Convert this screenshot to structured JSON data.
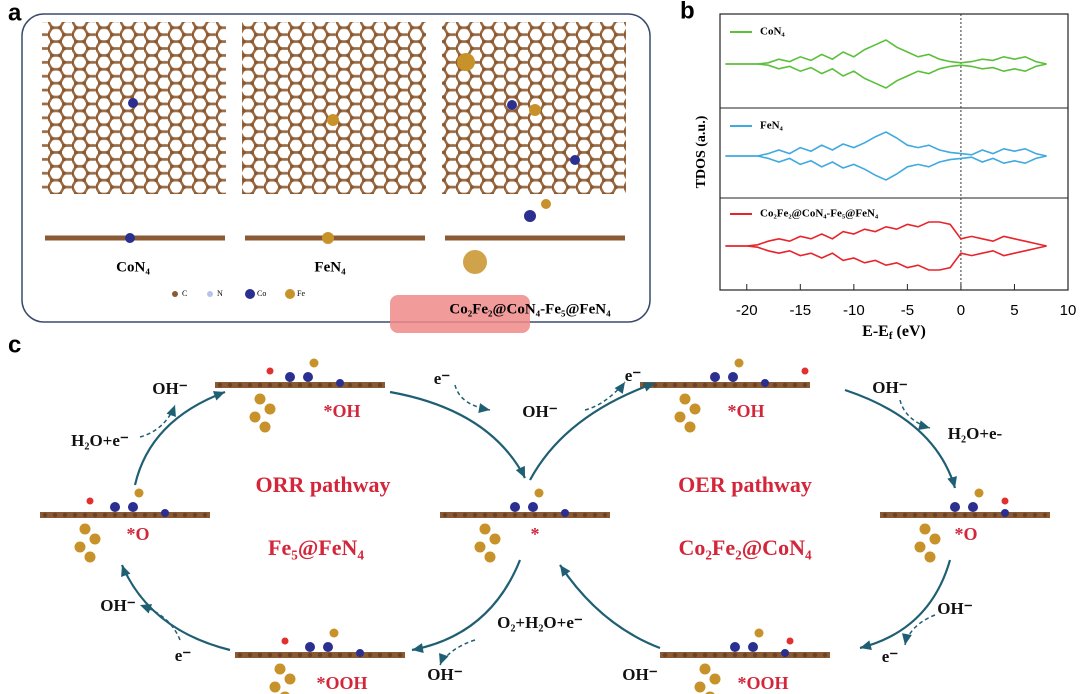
{
  "panel_letters": [
    "a",
    "b",
    "c"
  ],
  "panel_a": {
    "structure_labels": [
      "CoN₄",
      "FeN₄",
      "Co₂Fe₂@CoN₄-Fe₅@FeN₄"
    ],
    "atom_legend": [
      "C",
      "N",
      "Co",
      "Fe"
    ]
  },
  "chart_data": {
    "type": "line",
    "ylabel": "TDOS (a.u.)",
    "xlabel": [
      "E-E",
      "f",
      " (eV)"
    ],
    "x": [
      -22,
      -21,
      -20,
      -19,
      -18,
      -17,
      -16,
      -15,
      -14,
      -13,
      -12,
      -11,
      -10,
      -9,
      -8,
      -7,
      -6,
      -5,
      -4,
      -3,
      -2,
      -1,
      0,
      1,
      2,
      3,
      4,
      5,
      6,
      7,
      8
    ],
    "xlim": [
      -22.5,
      10
    ],
    "xticks": [
      -20,
      -15,
      -10,
      -5,
      0,
      5,
      10
    ],
    "series": [
      {
        "name": "CoN₄",
        "color": "#5cbf3a",
        "values": [
          0,
          0,
          0,
          0,
          0.05,
          0.2,
          0.1,
          0.3,
          0.15,
          0.4,
          0.2,
          0.5,
          0.3,
          0.6,
          0.8,
          1.0,
          0.7,
          0.5,
          0.3,
          0.4,
          0.2,
          0.1,
          0.05,
          0.1,
          0.2,
          0.15,
          0.3,
          0.2,
          0.3,
          0.1,
          0
        ]
      },
      {
        "name": "FeN₄",
        "color": "#3fa9e0",
        "values": [
          0,
          0,
          0,
          0,
          0.1,
          0.25,
          0.1,
          0.35,
          0.2,
          0.45,
          0.25,
          0.5,
          0.35,
          0.55,
          0.8,
          1.0,
          0.75,
          0.45,
          0.35,
          0.45,
          0.25,
          0.15,
          0.1,
          0.05,
          0.25,
          0.1,
          0.3,
          0.2,
          0.3,
          0.1,
          0
        ]
      },
      {
        "name": "Co₂Fe₂@CoN₄-Fe₅@FeN₄",
        "color": "#e8242b",
        "values": [
          0,
          0,
          0,
          0.05,
          0.2,
          0.3,
          0.2,
          0.4,
          0.3,
          0.5,
          0.3,
          0.6,
          0.5,
          0.7,
          0.6,
          0.8,
          0.7,
          0.9,
          0.8,
          1.0,
          1.0,
          0.9,
          0.3,
          0.4,
          0.3,
          0.2,
          0.4,
          0.3,
          0.2,
          0.1,
          0
        ]
      }
    ]
  },
  "panel_c": {
    "labels": [
      "OH⁻",
      "H₂O+e⁻",
      "e⁻",
      "OH⁻",
      "e⁻",
      "OH⁻",
      "H₂O+e-",
      "*OH",
      "*OH",
      "ORR pathway",
      "OER pathway",
      "Fe₅@FeN₄",
      "Co₂Fe₂@CoN₄",
      "*O",
      "*",
      "*O",
      "OH⁻",
      "e⁻",
      "O₂+H₂O+e⁻",
      "OH⁻",
      "OH⁻",
      "OH⁻",
      "e⁻",
      "*OOH",
      "*OOH"
    ]
  }
}
